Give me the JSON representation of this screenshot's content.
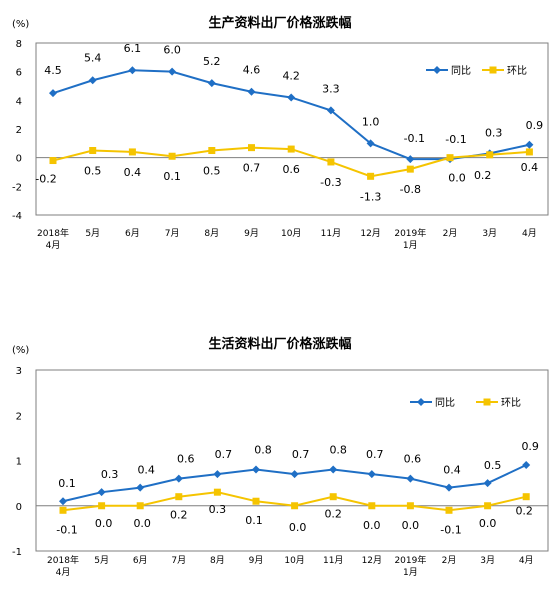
{
  "chart_data": [
    {
      "type": "line",
      "title": "生产资料出厂价格涨跌幅",
      "unit": "(%)",
      "ylim": [
        -4,
        8
      ],
      "yticks": [
        -4,
        -2,
        0,
        2,
        4,
        6,
        8
      ],
      "grid": false,
      "legend_placement": "top-right",
      "categories": [
        "2018年",
        "5月",
        "6月",
        "7月",
        "8月",
        "9月",
        "10月",
        "11月",
        "12月",
        "2019年",
        "2月",
        "3月",
        "4月"
      ],
      "categories_sub": [
        "4月",
        "",
        "",
        "",
        "",
        "",
        "",
        "",
        "",
        "1月",
        "",
        "",
        ""
      ],
      "series": [
        {
          "name": "同比",
          "color": "#1f6fc5",
          "marker": "diamond",
          "values": [
            4.5,
            5.4,
            6.1,
            6.0,
            5.2,
            4.6,
            4.2,
            3.3,
            1.0,
            -0.1,
            -0.1,
            0.3,
            0.9
          ],
          "labels": [
            "4.5",
            "5.4",
            "6.1",
            "6.0",
            "5.2",
            "4.6",
            "4.2",
            "3.3",
            "1.0",
            "-0.1",
            "-0.1",
            "0.3",
            "0.9"
          ]
        },
        {
          "name": "环比",
          "color": "#f5c400",
          "marker": "square",
          "values": [
            -0.2,
            0.5,
            0.4,
            0.1,
            0.5,
            0.7,
            0.6,
            -0.3,
            -1.3,
            -0.8,
            0.0,
            0.2,
            0.4
          ],
          "labels": [
            "-0.2",
            "0.5",
            "0.4",
            "0.1",
            "0.5",
            "0.7",
            "0.6",
            "-0.3",
            "-1.3",
            "-0.8",
            "0.0",
            "0.2",
            "0.4"
          ]
        }
      ]
    },
    {
      "type": "line",
      "title": "生活资料出厂价格涨跌幅",
      "unit": "(%)",
      "ylim": [
        -1,
        3
      ],
      "yticks": [
        -1,
        0,
        1,
        2,
        3
      ],
      "grid": false,
      "legend_placement": "top-right",
      "categories": [
        "2018年",
        "5月",
        "6月",
        "7月",
        "8月",
        "9月",
        "10月",
        "11月",
        "12月",
        "2019年",
        "2月",
        "3月",
        "4月"
      ],
      "categories_sub": [
        "4月",
        "",
        "",
        "",
        "",
        "",
        "",
        "",
        "",
        "1月",
        "",
        "",
        ""
      ],
      "series": [
        {
          "name": "同比",
          "color": "#1f6fc5",
          "marker": "diamond",
          "values": [
            0.1,
            0.3,
            0.4,
            0.6,
            0.7,
            0.8,
            0.7,
            0.8,
            0.7,
            0.6,
            0.4,
            0.5,
            0.9
          ],
          "labels": [
            "0.1",
            "0.3",
            "0.4",
            "0.6",
            "0.7",
            "0.8",
            "0.7",
            "0.8",
            "0.7",
            "0.6",
            "0.4",
            "0.5",
            "0.9"
          ]
        },
        {
          "name": "环比",
          "color": "#f5c400",
          "marker": "square",
          "values": [
            -0.1,
            0.0,
            0.0,
            0.2,
            0.3,
            0.1,
            0.0,
            0.2,
            0.0,
            0.0,
            -0.1,
            0.0,
            0.2
          ],
          "labels": [
            "-0.1",
            "0.0",
            "0.0",
            "0.2",
            "0.3",
            "0.1",
            "0.0",
            "0.2",
            "0.0",
            "0.0",
            "-0.1",
            "0.0",
            "0.2"
          ]
        }
      ]
    }
  ]
}
